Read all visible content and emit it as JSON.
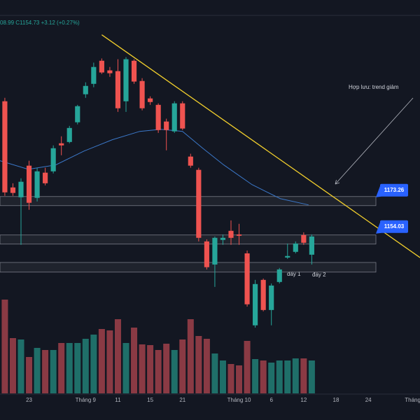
{
  "chart_data": {
    "type": "candlestick",
    "status": "08.99 C1154.73 +3.12 (+0.27%)",
    "annotations": [
      "Hợp lưu: trend giảm",
      "đáy 1",
      "đáy 2"
    ],
    "up_color": "#26a69a",
    "down_color": "#ef5350",
    "volume_up_color": "#1f6f69",
    "volume_down_color": "#8a3a44",
    "candles": {
      "open": [
        1220.6,
        1175.1,
        1169.9,
        1186.6,
        1169.6,
        1182.9,
        1183.6,
        1198.4,
        1199.1,
        1209.5,
        1224.3,
        1229.8,
        1242.0,
        1236.9,
        1236.5,
        1220.6,
        1242.0,
        1231.3,
        1222.1,
        1218.7,
        1209.9,
        1204.7,
        1219.5,
        1191.4,
        1184.4,
        1146.6,
        1134.4,
        1147.4,
        1152.2,
        1150.3,
        1140.3,
        1102.3,
        1126.3,
        1110.4,
        1125.2,
        1138.1,
        1141.1,
        1150.0,
        1139.6
      ],
      "high": [
        1222.4,
        1177.3,
        1179.9,
        1189.2,
        1185.5,
        1185.5,
        1197.3,
        1202.1,
        1207.6,
        1218.7,
        1230.6,
        1241.0,
        1243.2,
        1238.7,
        1242.8,
        1243.9,
        1242.8,
        1232.8,
        1223.2,
        1219.5,
        1211.4,
        1220.6,
        1220.6,
        1192.9,
        1185.5,
        1147.7,
        1149.2,
        1150.3,
        1157.7,
        1155.9,
        1141.8,
        1126.3,
        1127.0,
        1124.4,
        1132.6,
        1145.5,
        1146.6,
        1151.4,
        1150.3
      ],
      "low": [
        1170.7,
        1170.7,
        1144.8,
        1163.3,
        1167.7,
        1176.2,
        1182.5,
        1192.1,
        1198.4,
        1208.4,
        1222.4,
        1228.0,
        1235.0,
        1233.5,
        1215.0,
        1215.0,
        1229.8,
        1215.8,
        1218.7,
        1203.9,
        1194.7,
        1203.9,
        1205.4,
        1185.5,
        1146.6,
        1131.8,
        1122.6,
        1144.8,
        1144.8,
        1144.8,
        1112.2,
        1101.1,
        1109.7,
        1102.3,
        1124.4,
        1137.4,
        1140.3,
        1144.8,
        1134.4
      ],
      "close": [
        1172.5,
        1172.2,
        1178.1,
        1167.0,
        1183.6,
        1177.3,
        1195.8,
        1197.3,
        1206.5,
        1218.0,
        1228.7,
        1238.7,
        1235.8,
        1235.4,
        1216.9,
        1242.8,
        1231.0,
        1216.9,
        1220.2,
        1205.4,
        1205.4,
        1219.5,
        1206.2,
        1186.6,
        1148.5,
        1133.0,
        1148.5,
        1148.5,
        1148.5,
        1149.6,
        1113.4,
        1124.1,
        1110.4,
        1123.3,
        1131.8,
        1138.9,
        1145.5,
        1145.9,
        1149.2
      ]
    },
    "volume": [
      134,
      79,
      77,
      52,
      65,
      62,
      62,
      72,
      72,
      72,
      78,
      84,
      92,
      90,
      106,
      72,
      94,
      70,
      69,
      62,
      71,
      62,
      77,
      106,
      82,
      78,
      57,
      47,
      42,
      40,
      75,
      49,
      47,
      44,
      47,
      47,
      50,
      50,
      47
    ],
    "ma": {
      "color": "#3b78c9",
      "x": [
        -0.6,
        2.9,
        6.3,
        9.8,
        13.3,
        16.7,
        19.3,
        22,
        24.5,
        27.1,
        30.6,
        34.1,
        37.6
      ],
      "values": [
        1189.2,
        1184.7,
        1187.0,
        1194.3,
        1200.3,
        1204.7,
        1205.8,
        1204.7,
        1195.8,
        1187.0,
        1176.6,
        1169.2,
        1165.9
      ]
    },
    "trendline": {
      "color": "#f2cf2c",
      "start": [
        12,
        1255.7
      ],
      "end": [
        51.4,
        1138.1
      ]
    },
    "zones": [
      [
        1170.3,
        1165.5
      ],
      [
        1150.0,
        1145.2
      ],
      [
        1135.5,
        1130.4
      ]
    ],
    "price_labels": [
      1173.26,
      1154.03
    ],
    "label_color": "#2962ff",
    "xlim": [
      -0.6,
      51.4
    ],
    "ylim": [
      1100,
      1270
    ],
    "vlim": [
      0,
      140
    ],
    "xticks": [
      {
        "value": 3,
        "label": "23"
      },
      {
        "value": 10,
        "label": "Tháng 9"
      },
      {
        "value": 14,
        "label": "11"
      },
      {
        "value": 18,
        "label": "15"
      },
      {
        "value": 22,
        "label": "21"
      },
      {
        "value": 29,
        "label": "Tháng 10"
      },
      {
        "value": 33,
        "label": "6"
      },
      {
        "value": 37,
        "label": "12"
      },
      {
        "value": 41,
        "label": "18"
      },
      {
        "value": 45,
        "label": "24"
      },
      {
        "value": 50.5,
        "label": "Tháng"
      }
    ]
  }
}
